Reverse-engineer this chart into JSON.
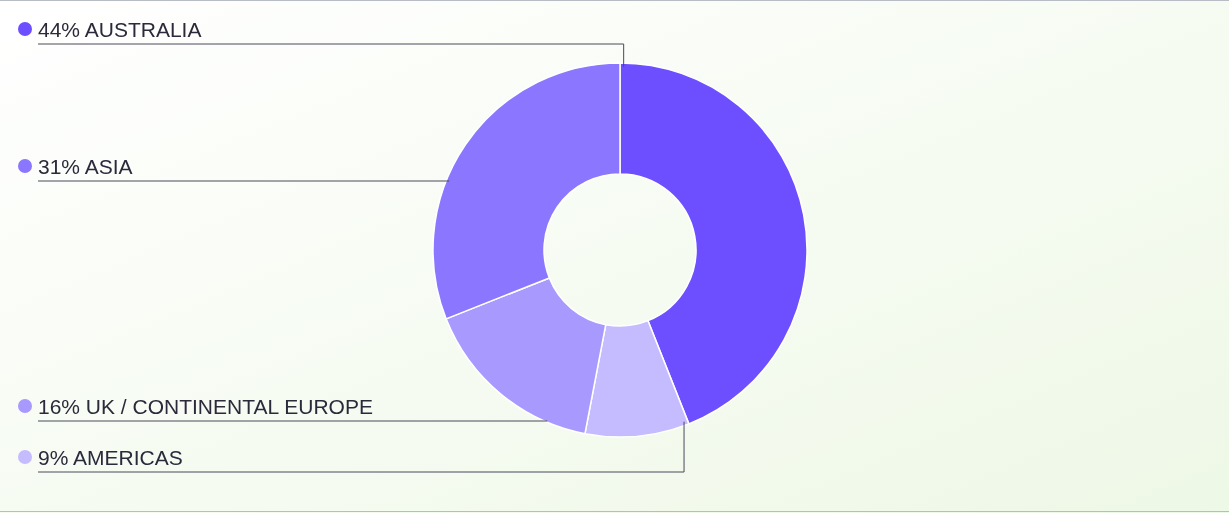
{
  "chart_data": {
    "type": "donut",
    "categories": [
      "AUSTRALIA",
      "AMERICAS",
      "UK / CONTINENTAL EUROPE",
      "ASIA"
    ],
    "values": [
      44,
      9,
      16,
      31
    ],
    "value_labels": [
      "44%",
      "9%",
      "16%",
      "31%"
    ],
    "colors": [
      "#6e4fff",
      "#c5bbff",
      "#a899ff",
      "#8b77ff"
    ],
    "legend": "left"
  }
}
